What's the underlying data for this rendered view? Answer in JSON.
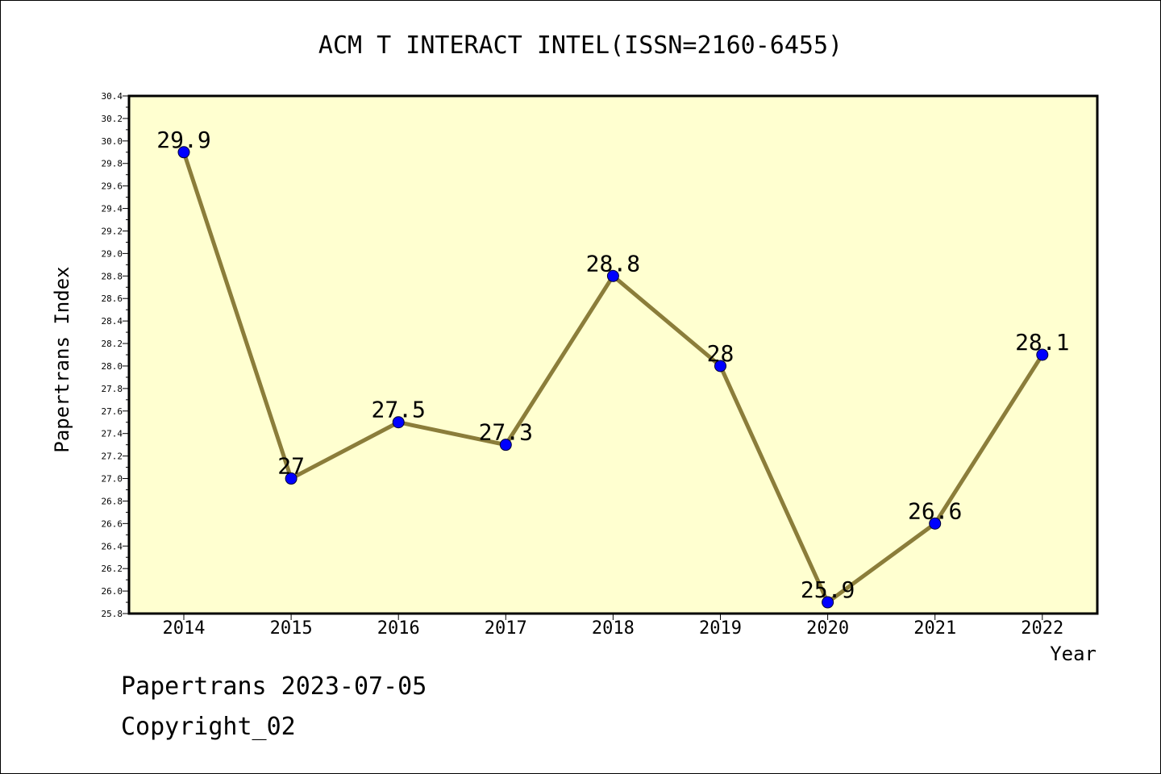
{
  "chart_data": {
    "type": "line",
    "title": "ACM T INTERACT INTEL(ISSN=2160-6455)",
    "xlabel": "Year",
    "ylabel": "Papertrans Index",
    "categories": [
      "2014",
      "2015",
      "2016",
      "2017",
      "2018",
      "2019",
      "2020",
      "2021",
      "2022"
    ],
    "series": [
      {
        "values": [
          29.9,
          27,
          27.5,
          27.3,
          28.8,
          28,
          25.9,
          26.6,
          28.1
        ],
        "data_labels": [
          "29.9",
          "27",
          "27.5",
          "27.3",
          "28.8",
          "28",
          "25.9",
          "26.6",
          "28.1"
        ]
      }
    ],
    "ylim": [
      25.8,
      30.4
    ],
    "y_ticks": [
      "25.8",
      "26.0",
      "26.2",
      "26.4",
      "26.6",
      "26.8",
      "27.0",
      "27.2",
      "27.4",
      "27.6",
      "27.8",
      "28.0",
      "28.2",
      "28.4",
      "28.6",
      "28.8",
      "29.0",
      "29.2",
      "29.4",
      "29.6",
      "29.8",
      "30.0",
      "30.2",
      "30.4"
    ],
    "grid": false,
    "colors": {
      "plot_background": "#FFFFD0",
      "line": "#8B7D3A",
      "marker": "#0000FF"
    }
  },
  "footer": {
    "line1": "Papertrans 2023-07-05",
    "line2": "Copyright_02"
  }
}
